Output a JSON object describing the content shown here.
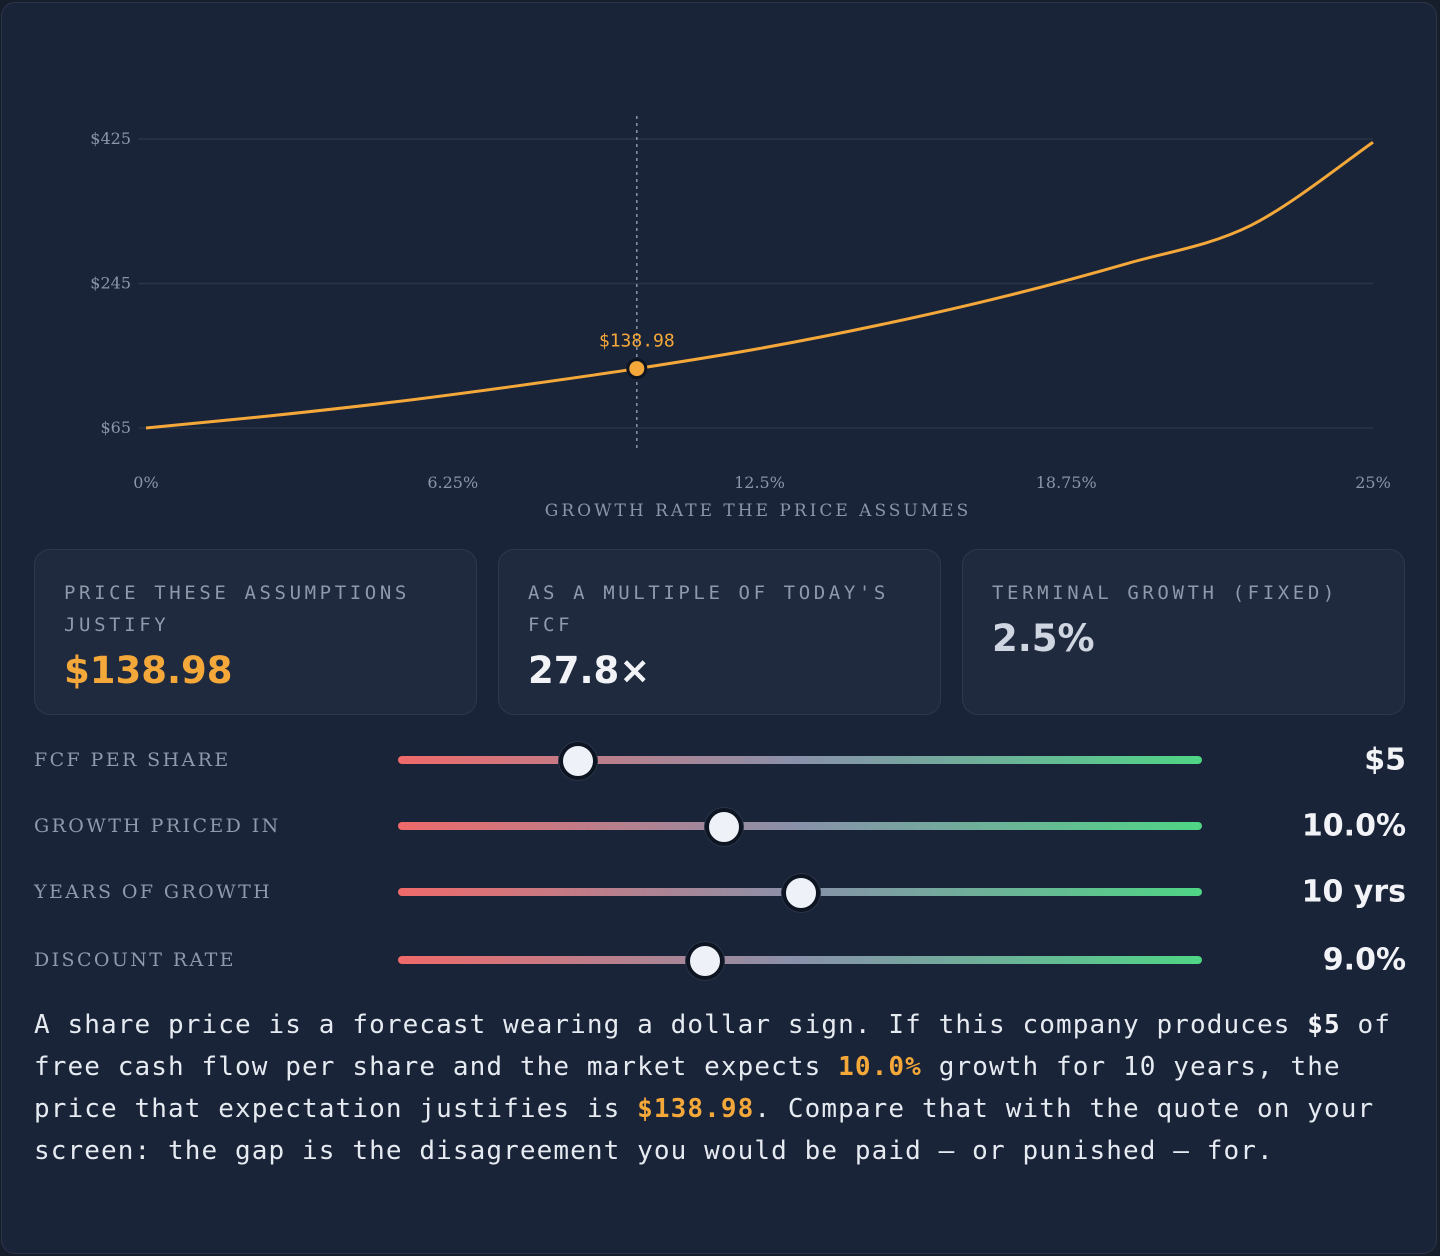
{
  "chart_data": {
    "type": "line",
    "xlabel": "GROWTH RATE THE PRICE ASSUMES",
    "x_ticks": [
      "0%",
      "6.25%",
      "12.5%",
      "18.75%",
      "25%"
    ],
    "y_ticks": [
      "$425",
      "$245",
      "$65"
    ],
    "xlim": [
      0,
      25
    ],
    "ylim": [
      65,
      425
    ],
    "grid": true,
    "series": [
      {
        "color": "#f5a83a",
        "x": [
          0,
          2.5,
          5,
          7.5,
          10,
          12.5,
          15,
          17.5,
          20,
          22.5,
          25
        ],
        "y": [
          65,
          80,
          97,
          117,
          139,
          164,
          194,
          229,
          270,
          317,
          421
        ]
      }
    ],
    "marker": {
      "x": 10,
      "y": 138.98,
      "label": "$138.98"
    }
  },
  "stats": [
    {
      "label": "PRICE THESE ASSUMPTIONS JUSTIFY",
      "value": "$138.98"
    },
    {
      "label": "AS A MULTIPLE OF TODAY'S FCF",
      "value": "27.8×"
    },
    {
      "label": "TERMINAL GROWTH (FIXED)",
      "value": "2.5%"
    }
  ],
  "sliders": [
    {
      "label": "FCF PER SHARE",
      "value": "$5",
      "position": 0.223
    },
    {
      "label": "GROWTH PRICED IN",
      "value": "10.0%",
      "position": 0.404
    },
    {
      "label": "YEARS OF GROWTH",
      "value": "10 yrs",
      "position": 0.5
    },
    {
      "label": "DISCOUNT RATE",
      "value": "9.0%",
      "position": 0.381
    }
  ],
  "narrative": {
    "p1": "A share price is a forecast wearing a dollar sign. If this company produces ",
    "fcf": "$5",
    "p2": " of free cash flow per share and the market expects ",
    "growth": "10.0%",
    "p3": " growth for 10 years, the price that expectation justifies is ",
    "price": "$138.98",
    "p4": ". Compare that with the quote on your screen: the gap is the disagreement you would be paid — or punished — for."
  },
  "colors": {
    "accent": "#f5a83a",
    "background": "#1a2438",
    "slider_low": "#f06a6a",
    "slider_high": "#4fd585"
  }
}
